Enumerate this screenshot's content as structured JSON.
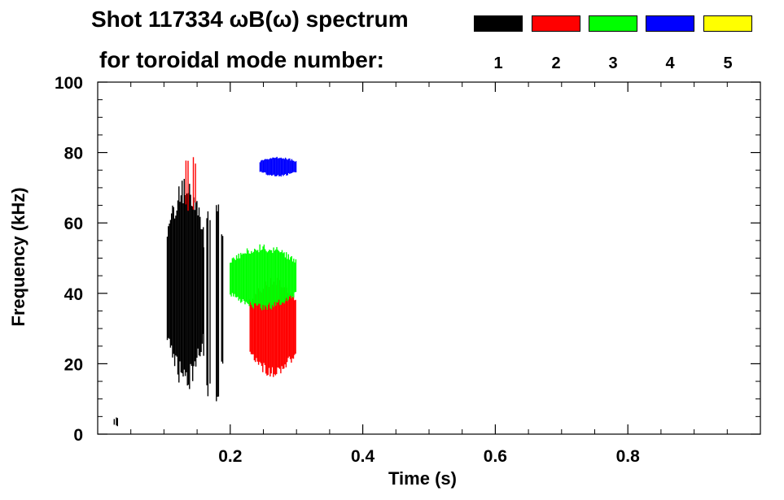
{
  "chart_data": {
    "type": "heatmap",
    "title_line1": "Shot 117334 ωB(ω) spectrum",
    "title_line2": "for toroidal mode number:",
    "xlabel": "Time (s)",
    "ylabel": "Frequency (kHz)",
    "xlim": [
      0.0,
      1.0
    ],
    "ylim": [
      0,
      100
    ],
    "x_ticks": [
      0.2,
      0.4,
      0.6,
      0.8
    ],
    "x_tick_labels": [
      "0.2",
      "0.4",
      "0.6",
      "0.8"
    ],
    "y_ticks": [
      0,
      20,
      40,
      60,
      80,
      100
    ],
    "y_tick_labels": [
      "0",
      "20",
      "40",
      "60",
      "80",
      "100"
    ],
    "legend": [
      {
        "mode": 1,
        "label": "1",
        "color": "#000000"
      },
      {
        "mode": 2,
        "label": "2",
        "color": "#ff0000"
      },
      {
        "mode": 3,
        "label": "3",
        "color": "#00ff00"
      },
      {
        "mode": 4,
        "label": "4",
        "color": "#0000ff"
      },
      {
        "mode": 5,
        "label": "5",
        "color": "#ffff00"
      }
    ],
    "regions": [
      {
        "mode": 1,
        "t_start": 0.105,
        "t_end": 0.16,
        "f_min": 12,
        "f_max": 73,
        "description": "broad n=1 activity"
      },
      {
        "mode": 1,
        "t_start": 0.16,
        "t_end": 0.19,
        "f_min": 5,
        "f_max": 70,
        "description": "intermittent n=1 streaks"
      },
      {
        "mode": 1,
        "t_start": 0.025,
        "t_end": 0.04,
        "f_min": 2,
        "f_max": 5,
        "description": "low frequency n=1"
      },
      {
        "mode": 2,
        "t_start": 0.13,
        "t_end": 0.15,
        "f_min": 62,
        "f_max": 80,
        "description": "n=2 high frequency chirp"
      },
      {
        "mode": 2,
        "t_start": 0.23,
        "t_end": 0.3,
        "f_min": 16,
        "f_max": 45,
        "description": "strong n=2 band"
      },
      {
        "mode": 3,
        "t_start": 0.2,
        "t_end": 0.3,
        "f_min": 35,
        "f_max": 54,
        "description": "n=3 band above n=2"
      },
      {
        "mode": 4,
        "t_start": 0.245,
        "t_end": 0.3,
        "f_min": 73,
        "f_max": 79,
        "description": "n=4 near 76 kHz"
      }
    ]
  }
}
